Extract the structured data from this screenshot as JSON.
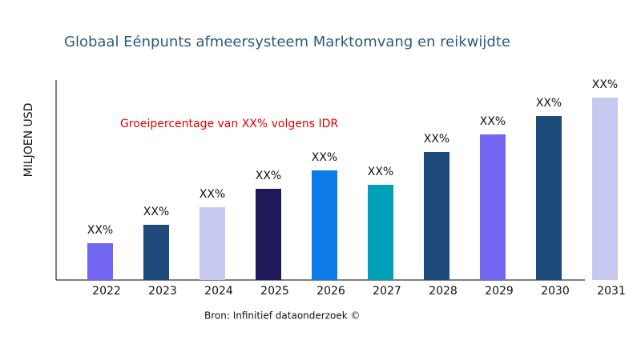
{
  "chart_data": {
    "type": "bar",
    "title": "Globaal Eénpunts afmeersysteem Marktomvang en reikwijdte",
    "y_label": "MILJOEN USD",
    "annotation": "Groeipercentage van XX% volgens IDR",
    "source": "Bron: Infinitief dataonderzoek ©",
    "categories": [
      "2022",
      "2023",
      "2024",
      "2025",
      "2026",
      "2027",
      "2028",
      "2029",
      "2030",
      "2031"
    ],
    "values": [
      46,
      69,
      91,
      114,
      137,
      119,
      160,
      182,
      205,
      228
    ],
    "value_labels": [
      "XX%",
      "XX%",
      "XX%",
      "XX%",
      "XX%",
      "XX%",
      "XX%",
      "XX%",
      "XX%",
      "XX%"
    ],
    "colors": [
      "#7366f0",
      "#1f4a7c",
      "#c8c9f0",
      "#1e1a5a",
      "#0c7be8",
      "#00a0b8",
      "#1f4a7c",
      "#7366f0",
      "#1f4a7c",
      "#c8c9f0"
    ],
    "ylim": [
      0,
      250
    ]
  }
}
